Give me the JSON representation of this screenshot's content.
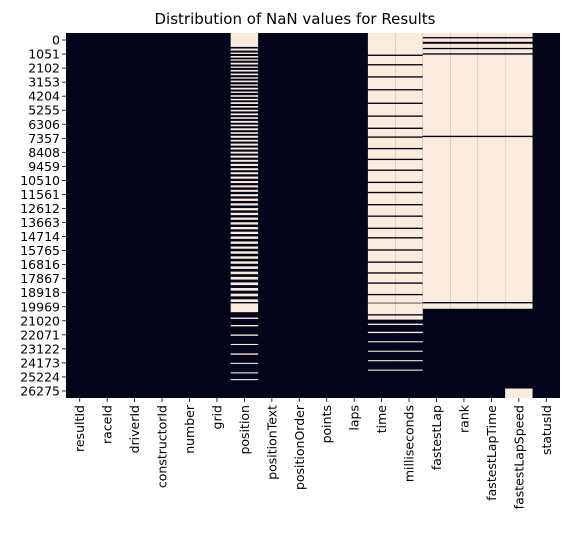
{
  "chart_data": {
    "type": "heatmap",
    "title": "Distribution of NaN values for Results",
    "xlabel": "",
    "ylabel": "",
    "colors": {
      "present": "#03051a",
      "missing": "#faebdd"
    },
    "colorbar": false,
    "n_rows": 27000,
    "columns": [
      "resultId",
      "raceId",
      "driverId",
      "constructorId",
      "number",
      "grid",
      "position",
      "positionText",
      "positionOrder",
      "points",
      "laps",
      "time",
      "milliseconds",
      "fastestLap",
      "rank",
      "fastestLapTime",
      "fastestLapSpeed",
      "statusId"
    ],
    "y_ticks": [
      0,
      1051,
      2102,
      3153,
      4204,
      5255,
      6306,
      7357,
      8408,
      9459,
      10510,
      11561,
      12612,
      13663,
      14714,
      15765,
      16816,
      17867,
      18918,
      19969,
      21020,
      22071,
      23122,
      24173,
      25224,
      26275
    ],
    "missing_ranges": {
      "position": [
        [
          0,
          1030
        ],
        [
          1150,
          1300
        ],
        [
          1450,
          1550
        ],
        [
          1700,
          1820
        ],
        [
          1950,
          2050
        ],
        [
          2200,
          2330
        ],
        [
          2480,
          2580
        ],
        [
          2730,
          2850
        ],
        [
          3000,
          3120
        ],
        [
          3280,
          3380
        ],
        [
          3520,
          3640
        ],
        [
          3800,
          3900
        ],
        [
          4050,
          4180
        ],
        [
          4330,
          4430
        ],
        [
          4600,
          4720
        ],
        [
          4870,
          4980
        ],
        [
          5120,
          5250
        ],
        [
          5400,
          5520
        ],
        [
          5680,
          5800
        ],
        [
          5950,
          6080
        ],
        [
          6230,
          6350
        ],
        [
          6500,
          6640
        ],
        [
          6780,
          6900
        ],
        [
          7050,
          7190
        ],
        [
          7340,
          7460
        ],
        [
          7600,
          7750
        ],
        [
          7900,
          8030
        ],
        [
          8180,
          8330
        ],
        [
          8480,
          8620
        ],
        [
          8780,
          8920
        ],
        [
          9070,
          9220
        ],
        [
          9380,
          9530
        ],
        [
          9680,
          9840
        ],
        [
          10000,
          10150
        ],
        [
          10300,
          10450
        ],
        [
          10620,
          10780
        ],
        [
          10950,
          11100
        ],
        [
          11270,
          11420
        ],
        [
          11600,
          11750
        ],
        [
          11920,
          12080
        ],
        [
          12250,
          12420
        ],
        [
          12600,
          12760
        ],
        [
          12950,
          13120
        ],
        [
          13300,
          13470
        ],
        [
          13650,
          13820
        ],
        [
          14000,
          14170
        ],
        [
          14350,
          14520
        ],
        [
          14700,
          14870
        ],
        [
          15050,
          15230
        ],
        [
          15420,
          15600
        ],
        [
          15790,
          15960
        ],
        [
          16150,
          16330
        ],
        [
          16520,
          16700
        ],
        [
          16890,
          17070
        ],
        [
          17260,
          17450
        ],
        [
          17650,
          17840
        ],
        [
          18040,
          18240
        ],
        [
          18450,
          18650
        ],
        [
          18860,
          19060
        ],
        [
          19280,
          19480
        ],
        [
          19700,
          19900
        ],
        [
          20000,
          20650
        ],
        [
          21050,
          21150
        ],
        [
          21600,
          21700
        ],
        [
          22300,
          22400
        ],
        [
          23000,
          23080
        ],
        [
          23700,
          23800
        ],
        [
          24400,
          24480
        ],
        [
          25100,
          25180
        ],
        [
          25600,
          25680
        ]
      ],
      "time": [
        [
          0,
          1600
        ],
        [
          1700,
          2300
        ],
        [
          2400,
          3200
        ],
        [
          3300,
          4150
        ],
        [
          4250,
          5150
        ],
        [
          5250,
          6100
        ],
        [
          6200,
          7000
        ],
        [
          7100,
          7650
        ],
        [
          7750,
          8500
        ],
        [
          8600,
          9300
        ],
        [
          9400,
          10100
        ],
        [
          10200,
          11000
        ],
        [
          11100,
          11750
        ],
        [
          11850,
          12650
        ],
        [
          12750,
          13500
        ],
        [
          13600,
          14400
        ],
        [
          14500,
          15100
        ],
        [
          15200,
          16000
        ],
        [
          16100,
          16900
        ],
        [
          17000,
          17700
        ],
        [
          17800,
          18450
        ],
        [
          18550,
          19300
        ],
        [
          19400,
          19950
        ],
        [
          20000,
          20800
        ],
        [
          20900,
          21200
        ],
        [
          21500,
          21600
        ],
        [
          22100,
          22200
        ],
        [
          22800,
          22880
        ],
        [
          23500,
          23580
        ],
        [
          24200,
          24280
        ],
        [
          24900,
          24980
        ]
      ],
      "milliseconds": [
        [
          0,
          1600
        ],
        [
          1700,
          2300
        ],
        [
          2400,
          3200
        ],
        [
          3300,
          4150
        ],
        [
          4250,
          5150
        ],
        [
          5250,
          6100
        ],
        [
          6200,
          7000
        ],
        [
          7100,
          7650
        ],
        [
          7750,
          8500
        ],
        [
          8600,
          9300
        ],
        [
          9400,
          10100
        ],
        [
          10200,
          11000
        ],
        [
          11100,
          11750
        ],
        [
          11850,
          12650
        ],
        [
          12750,
          13500
        ],
        [
          13600,
          14400
        ],
        [
          14500,
          15100
        ],
        [
          15200,
          16000
        ],
        [
          16100,
          16900
        ],
        [
          17000,
          17700
        ],
        [
          17800,
          18450
        ],
        [
          18550,
          19300
        ],
        [
          19400,
          19950
        ],
        [
          20000,
          20800
        ],
        [
          20900,
          21200
        ],
        [
          21500,
          21600
        ],
        [
          22100,
          22200
        ],
        [
          22800,
          22880
        ],
        [
          23500,
          23580
        ],
        [
          24200,
          24280
        ],
        [
          24900,
          24980
        ]
      ],
      "fastestLap": [
        [
          0,
          300
        ],
        [
          400,
          650
        ],
        [
          800,
          1100
        ],
        [
          1200,
          1500
        ],
        [
          1600,
          7600
        ],
        [
          7700,
          19900
        ],
        [
          20000,
          20400
        ]
      ],
      "rank": [
        [
          0,
          300
        ],
        [
          400,
          650
        ],
        [
          800,
          1100
        ],
        [
          1200,
          1500
        ],
        [
          1600,
          7600
        ],
        [
          7700,
          19900
        ],
        [
          20000,
          20400
        ]
      ],
      "fastestLapTime": [
        [
          0,
          300
        ],
        [
          400,
          650
        ],
        [
          800,
          1100
        ],
        [
          1200,
          1500
        ],
        [
          1600,
          7600
        ],
        [
          7700,
          19900
        ],
        [
          20000,
          20400
        ]
      ],
      "fastestLapSpeed": [
        [
          0,
          300
        ],
        [
          400,
          650
        ],
        [
          800,
          1100
        ],
        [
          1200,
          1500
        ],
        [
          1600,
          7600
        ],
        [
          7700,
          19900
        ],
        [
          20000,
          20400
        ],
        [
          26300,
          27000
        ]
      ]
    }
  }
}
